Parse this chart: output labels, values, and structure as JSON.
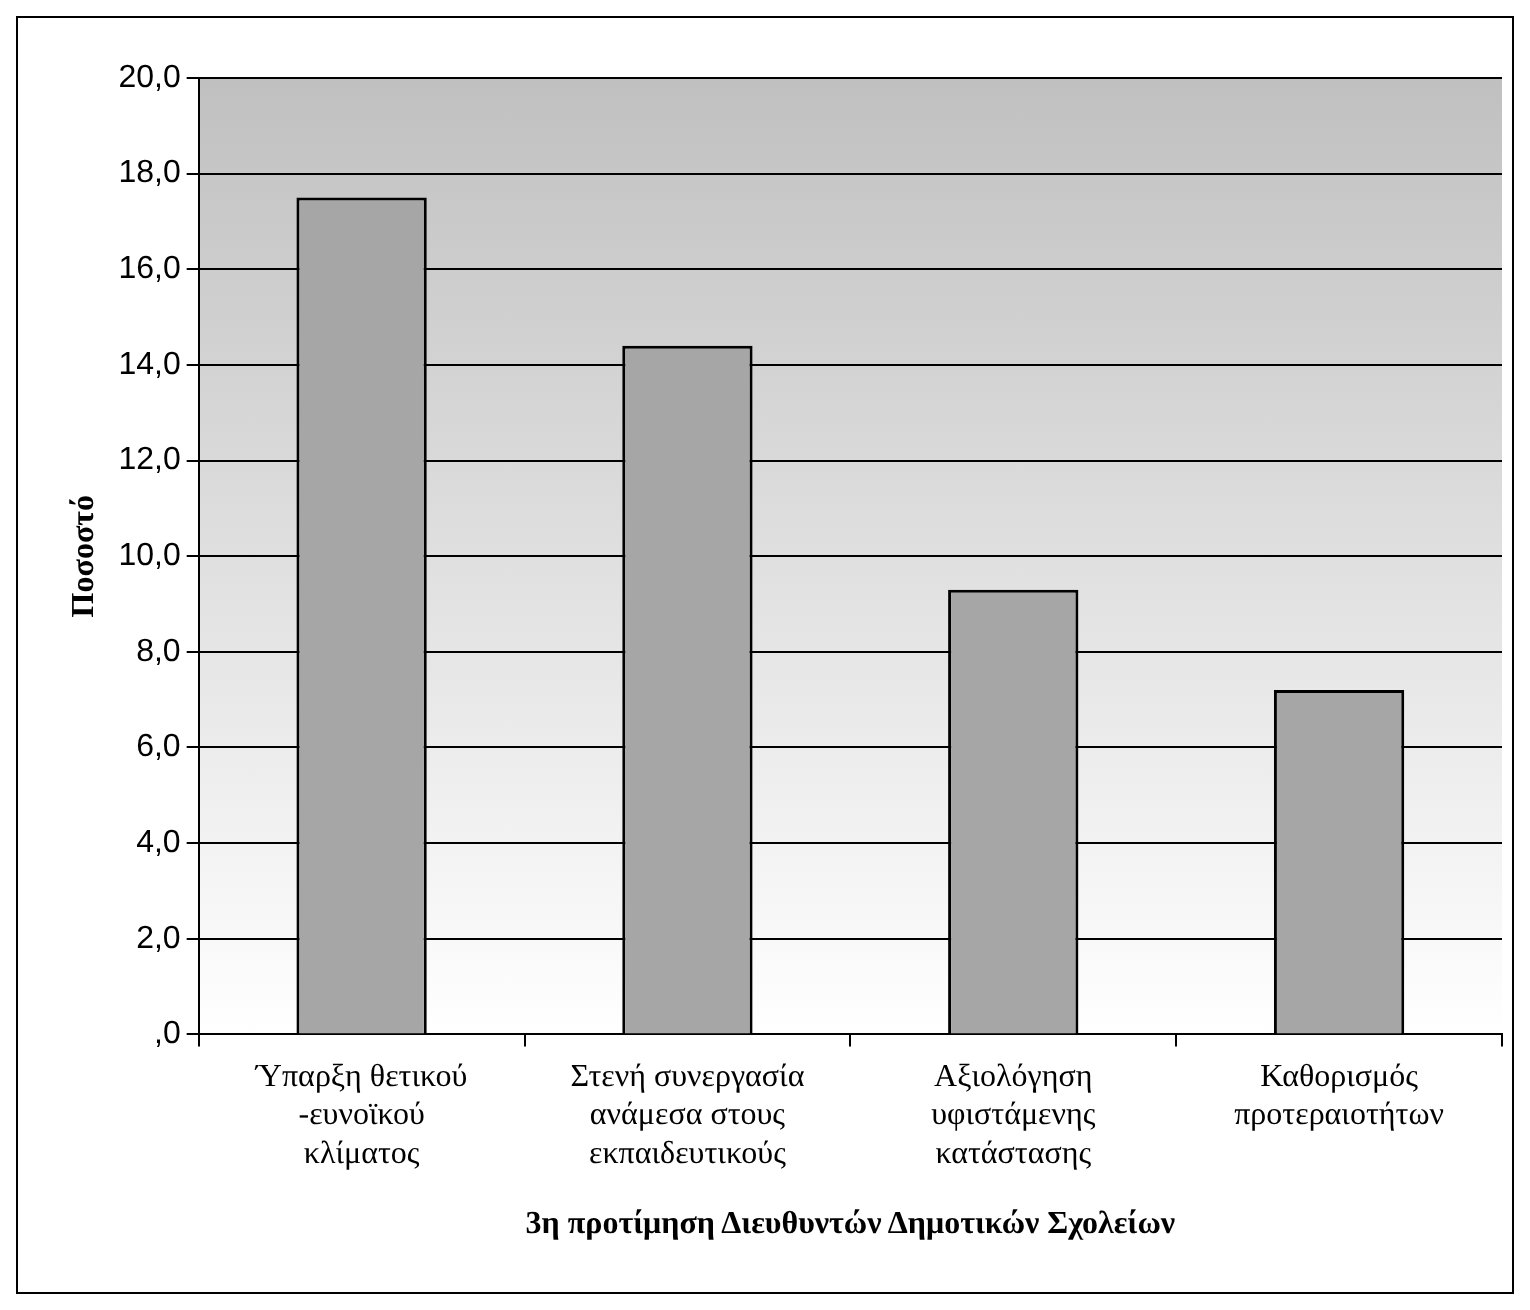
{
  "chart_data": {
    "type": "bar",
    "xlabel": "3η προτίμηση Διευθυντών Δημοτικών Σχολείων",
    "ylabel": "Ποσοστό",
    "categories": [
      "Ύπαρξη θετικού -ευνοϊκού κλίματος",
      "Στενή συνεργασία ανάμεσα στους εκπαιδευτικούς",
      "Αξιολόγηση υφιστάμενης κατάστασης",
      "Καθορισμός προτεραιοτήτων"
    ],
    "values": [
      17.5,
      14.4,
      9.3,
      7.2
    ],
    "color": "#a6a6a6",
    "ylim": [
      0,
      20
    ],
    "yticks": [
      {
        "value": 0,
        "label": ",0"
      },
      {
        "value": 2,
        "label": "2,0"
      },
      {
        "value": 4,
        "label": "4,0"
      },
      {
        "value": 6,
        "label": "6,0"
      },
      {
        "value": 8,
        "label": "8,0"
      },
      {
        "value": 10,
        "label": "10,0"
      },
      {
        "value": 12,
        "label": "12,0"
      },
      {
        "value": 14,
        "label": "14,0"
      },
      {
        "value": 16,
        "label": "16,0"
      },
      {
        "value": 18,
        "label": "18,0"
      },
      {
        "value": 20,
        "label": "20,0"
      }
    ],
    "grid": "y",
    "legend": false
  }
}
